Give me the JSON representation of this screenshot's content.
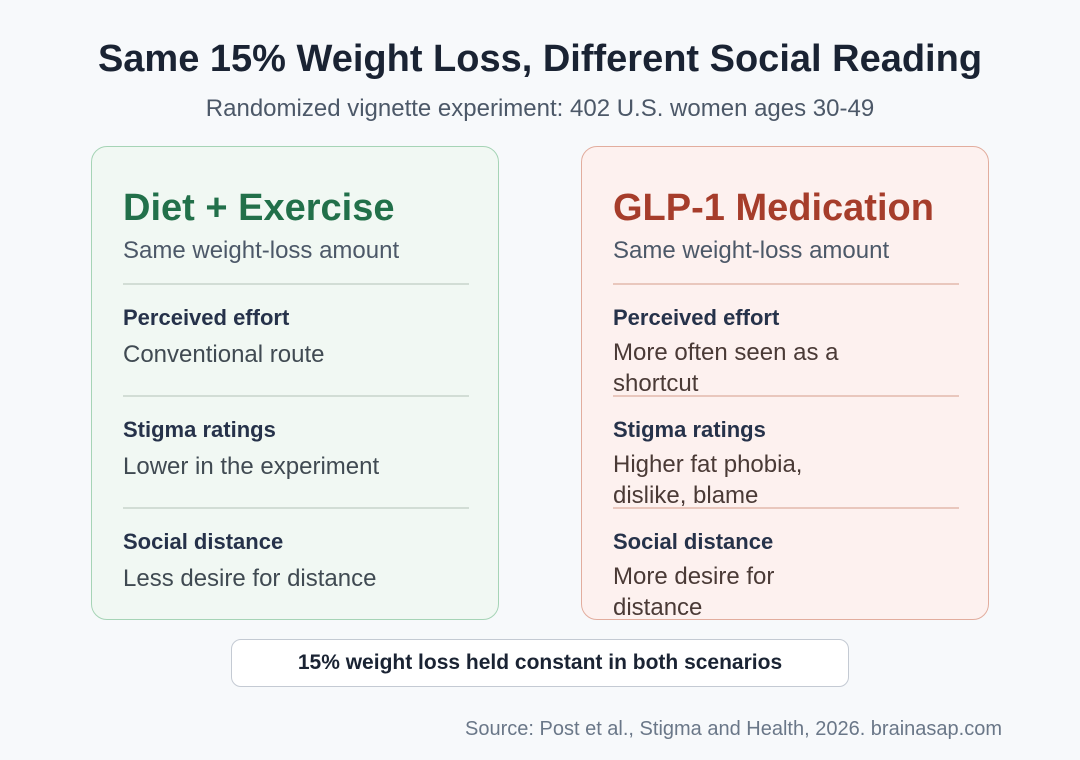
{
  "title": "Same 15% Weight Loss, Different Social Reading",
  "subtitle": "Randomized vignette experiment: 402 U.S. women ages 30-49",
  "cards": [
    {
      "title": "Diet + Exercise",
      "subtitle": "Same weight-loss amount",
      "color": "#22704a",
      "rows": [
        {
          "label": "Perceived effort",
          "value": "Conventional route"
        },
        {
          "label": "Stigma ratings",
          "value": "Lower in the experiment"
        },
        {
          "label": "Social distance",
          "value": "Less desire for distance"
        }
      ]
    },
    {
      "title": "GLP-1 Medication",
      "subtitle": "Same weight-loss amount",
      "color": "#a63d2b",
      "rows": [
        {
          "label": "Perceived effort",
          "value": "More often seen as a shortcut"
        },
        {
          "label": "Stigma ratings",
          "value": "Higher fat phobia, dislike, blame"
        },
        {
          "label": "Social distance",
          "value": "More desire for distance"
        }
      ]
    }
  ],
  "note": "15% weight loss held constant in both scenarios",
  "source": "Source: Post et al., Stigma and Health, 2026. brainasap.com"
}
